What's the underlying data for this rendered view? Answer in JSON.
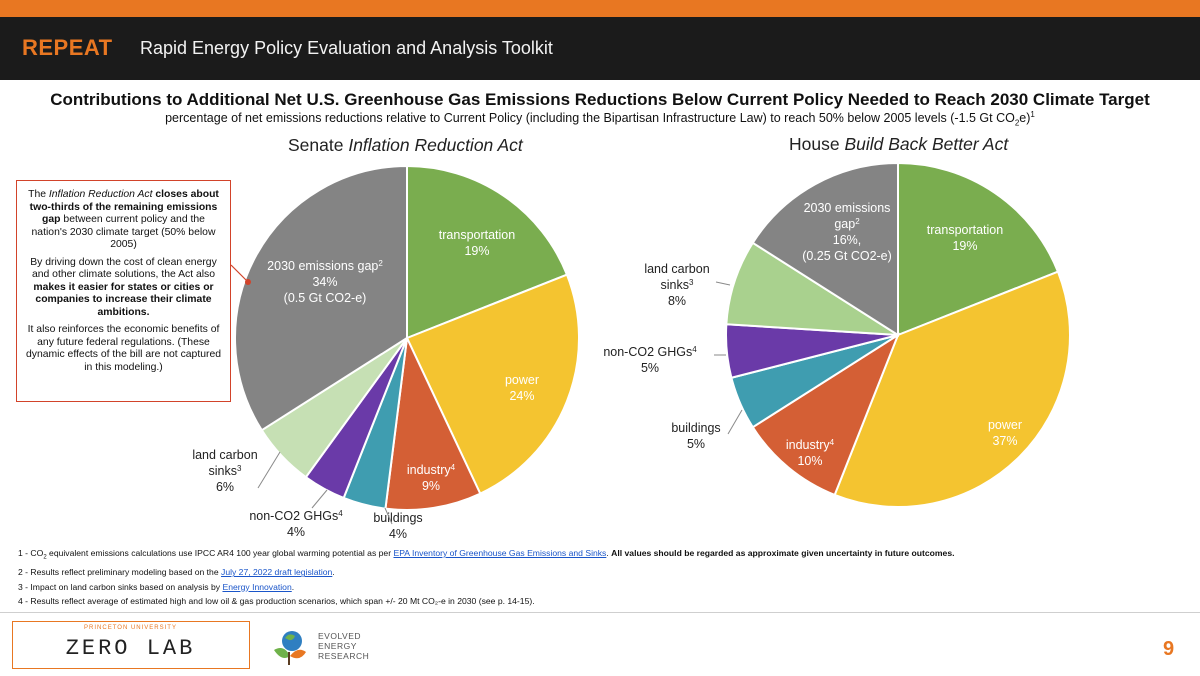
{
  "header": {
    "brand": "REPEAT",
    "subtitle": "Rapid Energy Policy Evaluation and Analysis Toolkit"
  },
  "title": "Contributions to Additional Net U.S. Greenhouse Gas Emissions Reductions Below Current Policy Needed to Reach 2030 Climate Target",
  "subtitle": {
    "text": "percentage of net emissions reductions relative to Current Policy (including the Bipartisan Infrastructure Law) to reach 50% below 2005 levels (-1.5 Gt CO",
    "sub": "2",
    "end": "e)",
    "sup": "1"
  },
  "callout": {
    "p1_a": "The ",
    "p1_b": "Inflation Reduction Act",
    "p1_c": " closes about two-thirds of the remaining emissions gap",
    "p1_d": " between current policy and the nation's 2030 climate target (50% below 2005)",
    "p2_a": "By driving down the cost of clean energy and other climate solutions, the Act also ",
    "p2_b": "makes it easier for states or cities or companies to increase their climate ambitions.",
    "p3": "It also reinforces the economic benefits of any future federal regulations. (These dynamic effects of the bill are not captured in this modeling.)"
  },
  "chart_data": [
    {
      "type": "pie",
      "title_prefix": "Senate ",
      "title_italic": "Inflation Reduction Act",
      "slices": [
        {
          "name": "transportation",
          "value": 19,
          "label": "19%",
          "color": "#7aad4f"
        },
        {
          "name": "power",
          "value": 24,
          "label": "24%",
          "color": "#f4c430"
        },
        {
          "name": "industry",
          "value": 9,
          "label": "9%",
          "color": "#d45f35",
          "sup": "4"
        },
        {
          "name": "buildings",
          "value": 4,
          "label": "4%",
          "color": "#3f9db0"
        },
        {
          "name": "non-CO2 GHGs",
          "value": 4,
          "label": "4%",
          "color": "#6a3aa8",
          "sup": "4"
        },
        {
          "name": "land carbon sinks",
          "value": 6,
          "label": "6%",
          "color": "#c6e0b4",
          "sup": "3"
        },
        {
          "name": "2030 emissions gap",
          "value": 34,
          "label": "34%",
          "extra": "(0.5 Gt CO2-e)",
          "color": "#848484",
          "sup": "2"
        }
      ]
    },
    {
      "type": "pie",
      "title_prefix": "House ",
      "title_italic": "Build Back Better Act",
      "slices": [
        {
          "name": "transportation",
          "value": 19,
          "label": "19%",
          "color": "#7aad4f"
        },
        {
          "name": "power",
          "value": 37,
          "label": "37%",
          "color": "#f4c430"
        },
        {
          "name": "industry",
          "value": 10,
          "label": "10%",
          "color": "#d45f35",
          "sup": "4"
        },
        {
          "name": "buildings",
          "value": 5,
          "label": "5%",
          "color": "#3f9db0"
        },
        {
          "name": "non-CO2 GHGs",
          "value": 5,
          "label": "5%",
          "color": "#6a3aa8",
          "sup": "4"
        },
        {
          "name": "land carbon sinks",
          "value": 8,
          "label": "8%",
          "color": "#a9d18e",
          "sup": "3"
        },
        {
          "name": "2030 emissions gap",
          "value": 16,
          "label": "16%,",
          "extra": "(0.25 Gt CO2-e)",
          "color": "#848484",
          "sup": "2"
        }
      ]
    }
  ],
  "footnotes": {
    "f1_a": "1 - CO",
    "f1_sub": "2",
    "f1_b": " equivalent emissions calculations use IPCC AR4 100 year global warming potential as per ",
    "f1_link": "EPA Inventory of Greenhouse Gas Emissions and Sinks",
    "f1_c": ". ",
    "f1_bold": "All values should be regarded as approximate given uncertainty in future outcomes.",
    "f2_a": "2 - Results reflect preliminary modeling based on the ",
    "f2_link": "July 27, 2022 draft legislation",
    "f2_b": ".",
    "f3_a": "3 - Impact on land carbon sinks based on analysis by ",
    "f3_link": "Energy Innovation",
    "f3_b": ".",
    "f4": "4 - Results reflect average of estimated high and low oil & gas production scenarios, which span +/- 20 Mt CO₂-e in 2030 (see p. 14-15)."
  },
  "footer": {
    "zerolab_top": "PRINCETON UNIVERSITY",
    "zerolab": "ZERO LAB",
    "eer": [
      "EVOLVED",
      "ENERGY",
      "RESEARCH"
    ],
    "page": "9"
  },
  "colors": {
    "accent": "#e87722",
    "header_bg": "#1b1b1b",
    "callout_border": "#d2432a",
    "link": "#1a55c9"
  }
}
